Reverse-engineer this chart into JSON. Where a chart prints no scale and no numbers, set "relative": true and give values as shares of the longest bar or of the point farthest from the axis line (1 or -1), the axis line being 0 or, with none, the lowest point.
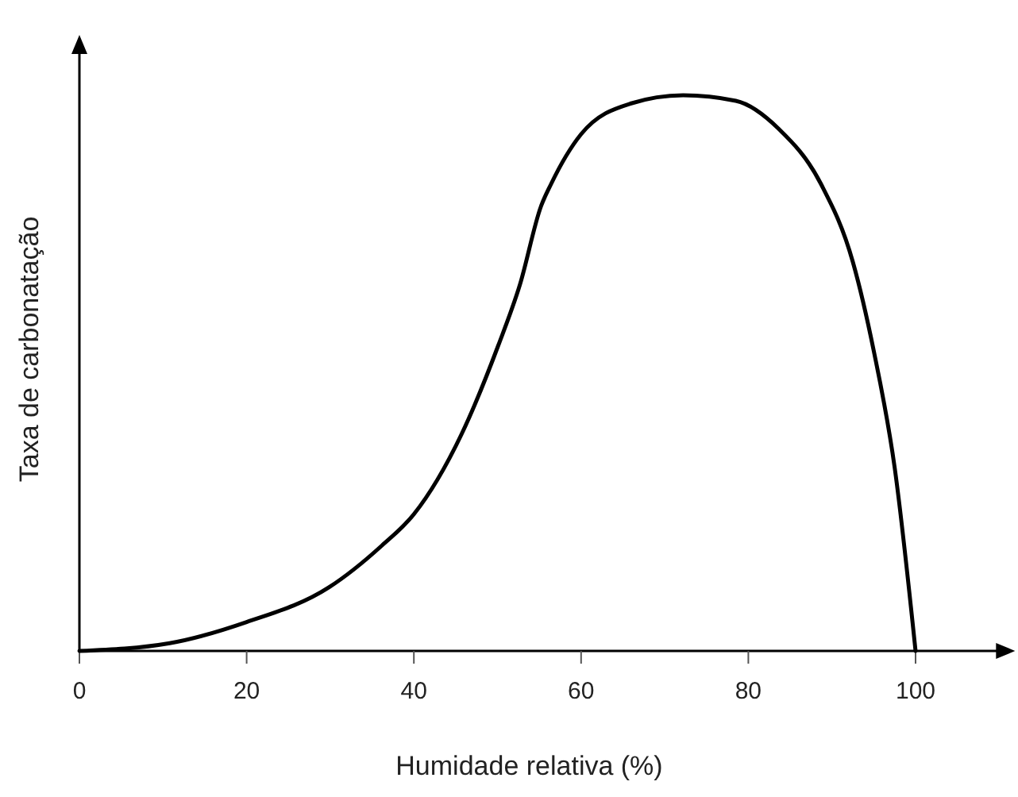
{
  "chart_data": {
    "type": "line",
    "xlabel": "Humidade relativa (%)",
    "ylabel": "Taxa de carbonatação",
    "relative": true,
    "xlim": [
      0,
      110
    ],
    "xticks": [
      0,
      20,
      40,
      60,
      80,
      100
    ],
    "grid": false,
    "marker": "none",
    "line_style": "solid",
    "series": [
      {
        "color": "#000000",
        "x": [
          0,
          10.8,
          20,
          29.8,
          36.2,
          40,
          45.7,
          50.1,
          52.7,
          55.2,
          56.4,
          60,
          65.9,
          72.2,
          78.5,
          83.6,
          88.7,
          92.5,
          95,
          97.5,
          100
        ],
        "values": [
          0,
          0.014,
          0.052,
          0.114,
          0.19,
          0.246,
          0.39,
          0.55,
          0.66,
          0.8,
          0.84,
          0.93,
          0.985,
          1,
          0.99,
          0.94,
          0.84,
          0.7,
          0.54,
          0.33,
          0
        ]
      }
    ]
  }
}
